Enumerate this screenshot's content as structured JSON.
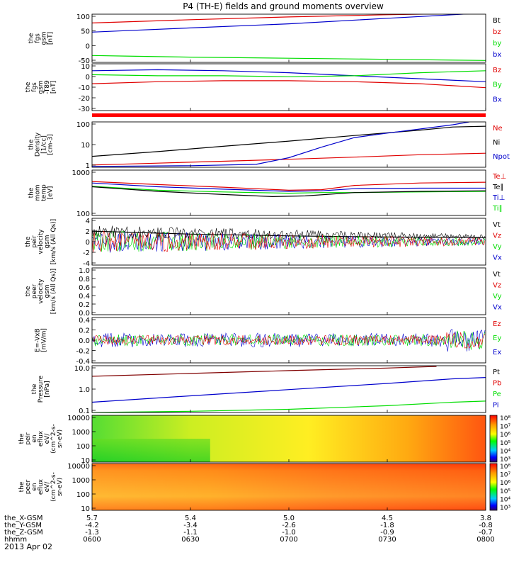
{
  "title": "P4 (TH-E) fields and ground moments overview",
  "colors": {
    "black": "#000000",
    "red": "#e00000",
    "green": "#00dd00",
    "blue": "#0000cc",
    "darkred": "#800000",
    "band": "#ff0000"
  },
  "chart_data": {
    "type": "line",
    "x_time_labels": [
      "0600",
      "0630",
      "0700",
      "0730",
      "0800"
    ],
    "x_range_hhmm": [
      "0600",
      "0800"
    ],
    "panels": [
      {
        "id": "fgs_gsm",
        "type": "line",
        "ylabel": [
          "the",
          "fgs",
          "gsm",
          "[nT]"
        ],
        "yticks": [
          "100",
          "50",
          "0",
          "-50"
        ],
        "ylim": [
          -65,
          110
        ],
        "scale": "linear",
        "legend": [
          {
            "text": "Bt",
            "color": "#000000"
          },
          {
            "text": "bz",
            "color": "#e00000"
          },
          {
            "text": "by",
            "color": "#00dd00"
          },
          {
            "text": "bx",
            "color": "#0000cc"
          }
        ],
        "series": [
          {
            "name": "bz",
            "color": "#e00000",
            "x": [
              0,
              10,
              30,
              60,
              90,
              110,
              120
            ],
            "y": [
              78,
              82,
              90,
              100,
              108,
              112,
              114
            ]
          },
          {
            "name": "bx",
            "color": "#0000cc",
            "x": [
              0,
              10,
              30,
              60,
              90,
              110,
              120
            ],
            "y": [
              45,
              50,
              60,
              75,
              95,
              108,
              115
            ]
          },
          {
            "name": "by",
            "color": "#00dd00",
            "x": [
              0,
              10,
              30,
              60,
              90,
              120
            ],
            "y": [
              -40,
              -42,
              -46,
              -50,
              -54,
              -58
            ]
          }
        ]
      },
      {
        "id": "fgs_gsm_t89",
        "type": "line",
        "ylabel": [
          "the",
          "fgs",
          "gsm",
          "-T89",
          "[nT]"
        ],
        "yticks": [
          "10",
          "0",
          "-10",
          "-20",
          "-30"
        ],
        "ylim": [
          -35,
          12
        ],
        "scale": "linear",
        "legend": [
          {
            "text": "Bz",
            "color": "#e00000"
          },
          {
            "text": "By",
            "color": "#00dd00"
          },
          {
            "text": "Bx",
            "color": "#0000cc"
          }
        ],
        "series": [
          {
            "name": "Bx",
            "color": "#0000cc",
            "x": [
              0,
              20,
              40,
              60,
              80,
              100,
              120
            ],
            "y": [
              5,
              6,
              5,
              3,
              0,
              -3,
              -6
            ]
          },
          {
            "name": "By",
            "color": "#00dd00",
            "x": [
              0,
              20,
              40,
              60,
              80,
              100,
              120
            ],
            "y": [
              1,
              0,
              0,
              -1,
              0,
              3,
              5
            ]
          },
          {
            "name": "Bz",
            "color": "#e00000",
            "x": [
              0,
              20,
              40,
              60,
              80,
              100,
              120
            ],
            "y": [
              -8,
              -6,
              -5,
              -5,
              -6,
              -8,
              -12
            ]
          }
        ]
      },
      {
        "id": "density",
        "type": "line",
        "ylabel": [
          "the",
          "Density",
          "[1/cc]",
          "[cm-3]"
        ],
        "yticks": [
          "100",
          "10",
          "1"
        ],
        "ylim": [
          1,
          180
        ],
        "scale": "log",
        "legend": [
          {
            "text": "Ne",
            "color": "#e00000"
          },
          {
            "text": "Ni",
            "color": "#000000"
          },
          {
            "text": "Npot",
            "color": "#0000cc"
          }
        ],
        "series": [
          {
            "name": "Ni",
            "color": "#000000",
            "x": [
              0,
              20,
              40,
              60,
              80,
              100,
              110,
              120
            ],
            "y": [
              3.5,
              6,
              11,
              20,
              38,
              70,
              100,
              110
            ]
          },
          {
            "name": "Ne",
            "color": "#e00000",
            "x": [
              0,
              20,
              40,
              60,
              80,
              100,
              120
            ],
            "y": [
              1.3,
              1.6,
              2.0,
              2.5,
              3.2,
              4.2,
              5.0
            ]
          },
          {
            "name": "Npot",
            "color": "#0000cc",
            "x": [
              0,
              30,
              50,
              60,
              70,
              80,
              90,
              100,
              110,
              115
            ],
            "y": [
              1.1,
              1.2,
              1.4,
              3,
              10,
              30,
              50,
              80,
              130,
              180
            ]
          }
        ]
      },
      {
        "id": "temperature",
        "type": "line",
        "ylabel": [
          "the",
          "mom",
          "temp",
          "[eV]"
        ],
        "yticks": [
          "1000",
          "100"
        ],
        "ylim": [
          100,
          1000
        ],
        "scale": "log",
        "legend": [
          {
            "text": "Te⊥",
            "color": "#e00000"
          },
          {
            "text": "Te∥",
            "color": "#000000"
          },
          {
            "text": "Ti⊥",
            "color": "#0000cc"
          },
          {
            "text": "Ti∥",
            "color": "#00dd00"
          }
        ],
        "series": [
          {
            "name": "Te⊥",
            "color": "#e00000",
            "x": [
              0,
              20,
              40,
              60,
              70,
              80,
              100,
              120
            ],
            "y": [
              560,
              480,
              420,
              360,
              370,
              460,
              520,
              540
            ]
          },
          {
            "name": "Ti⊥",
            "color": "#0000cc",
            "x": [
              0,
              20,
              40,
              60,
              70,
              80,
              100,
              120
            ],
            "y": [
              520,
              430,
              380,
              340,
              350,
              390,
              400,
              400
            ]
          },
          {
            "name": "Ti∥",
            "color": "#00dd00",
            "x": [
              0,
              20,
              40,
              60,
              70,
              80,
              100,
              120
            ],
            "y": [
              440,
              360,
              330,
              310,
              320,
              320,
              330,
              340
            ]
          },
          {
            "name": "Te∥",
            "color": "#000000",
            "x": [
              0,
              20,
              40,
              55,
              65,
              80,
              100,
              120
            ],
            "y": [
              430,
              340,
              290,
              260,
              270,
              320,
              340,
              350
            ]
          }
        ]
      },
      {
        "id": "peir_velocity",
        "type": "line",
        "ylabel": [
          "the",
          "peir",
          "velocity",
          "gsm",
          "[km/s (All Qs)]"
        ],
        "yticks": [
          "4",
          "2",
          "0",
          "-2",
          "-4"
        ],
        "ylim": [
          -4,
          4
        ],
        "scale": "linear",
        "legend": [
          {
            "text": "Vt",
            "color": "#000000"
          },
          {
            "text": "Vz",
            "color": "#e00000"
          },
          {
            "text": "Vy",
            "color": "#00dd00"
          },
          {
            "text": "Vx",
            "color": "#0000cc"
          }
        ],
        "series": [
          {
            "name": "Vt",
            "color": "#000000",
            "x": [
              0,
              30,
              60,
              90,
              120
            ],
            "y": [
              1.8,
              1.3,
              1.0,
              0.8,
              0.7
            ]
          }
        ]
      },
      {
        "id": "peer_velocity",
        "type": "line",
        "ylabel": [
          "the",
          "peer",
          "velocity",
          "gsm",
          "[km/s (All Qs)]"
        ],
        "yticks": [
          "1.0",
          "0.8",
          "0.6",
          "0.4",
          "0.2",
          "0.0"
        ],
        "ylim": [
          0,
          1
        ],
        "scale": "linear",
        "legend": [
          {
            "text": "Vt",
            "color": "#000000"
          },
          {
            "text": "Vz",
            "color": "#e00000"
          },
          {
            "text": "Vy",
            "color": "#00dd00"
          },
          {
            "text": "Vx",
            "color": "#0000cc"
          }
        ],
        "series": []
      },
      {
        "id": "efield",
        "type": "line",
        "ylabel": [
          "E=-VxB",
          "[mV/m]"
        ],
        "yticks": [
          "0.4",
          "0.2",
          "0.0",
          "-0.2",
          "-0.4"
        ],
        "ylim": [
          -0.45,
          0.45
        ],
        "scale": "linear",
        "legend": [
          {
            "text": "Ez",
            "color": "#e00000"
          },
          {
            "text": "Ey",
            "color": "#00dd00"
          },
          {
            "text": "Ex",
            "color": "#0000cc"
          }
        ],
        "series": []
      },
      {
        "id": "pressure",
        "type": "line",
        "ylabel": [
          "the",
          "Pressure",
          "[nPa]"
        ],
        "yticks": [
          "10.0",
          "1.0",
          "0.1"
        ],
        "ylim": [
          0.07,
          13
        ],
        "scale": "log",
        "legend": [
          {
            "text": "Pt",
            "color": "#000000"
          },
          {
            "text": "Pb",
            "color": "#e00000"
          },
          {
            "text": "Pe",
            "color": "#00dd00"
          },
          {
            "text": "Pi",
            "color": "#0000cc"
          }
        ],
        "series": [
          {
            "name": "Pb",
            "color": "#800000",
            "x": [
              0,
              30,
              60,
              90,
              105
            ],
            "y": [
              4,
              5.5,
              7.5,
              10,
              12
            ]
          },
          {
            "name": "Pi",
            "color": "#0000cc",
            "x": [
              0,
              30,
              60,
              90,
              110,
              120
            ],
            "y": [
              0.22,
              0.45,
              0.9,
              1.8,
              3.0,
              3.5
            ]
          },
          {
            "name": "Pe",
            "color": "#00dd00",
            "x": [
              0,
              30,
              60,
              90,
              110,
              120
            ],
            "y": [
              0.07,
              0.08,
              0.1,
              0.15,
              0.22,
              0.25
            ]
          }
        ]
      },
      {
        "id": "peir_en_eflux",
        "type": "heatmap",
        "ylabel": [
          "the",
          "peir",
          "en",
          "eflux",
          "eV/",
          "(cm^2-s-",
          "sr-eV)"
        ],
        "yticks": [
          "10000",
          "1000",
          "100",
          "10"
        ],
        "ylim": [
          10,
          25000
        ],
        "scale": "log",
        "colorbar": [
          "10⁸",
          "10⁷",
          "10⁶",
          "10⁵",
          "10⁴",
          "10³"
        ]
      },
      {
        "id": "peer_en_eflux",
        "type": "heatmap",
        "ylabel": [
          "the",
          "peer",
          "en",
          "eflux",
          "eV/",
          "(cm^2-s-",
          "sr-eV)"
        ],
        "yticks": [
          "10000",
          "1000",
          "100",
          "10"
        ],
        "ylim": [
          10,
          25000
        ],
        "scale": "log",
        "colorbar": [
          "10⁸",
          "10⁷",
          "10⁶",
          "10⁵",
          "10⁴",
          "10³"
        ]
      }
    ],
    "x_axis_rows": [
      {
        "label": "the_X-GSM",
        "values": [
          "5.7",
          "5.4",
          "5.0",
          "4.5",
          "3.8"
        ]
      },
      {
        "label": "the_Y-GSM",
        "values": [
          "-4.2",
          "-3.4",
          "-2.6",
          "-1.8",
          "-0.8"
        ]
      },
      {
        "label": "the_Z-GSM",
        "values": [
          "-1.3",
          "-1.1",
          "-1.0",
          "-0.9",
          "-0.7"
        ]
      },
      {
        "label": "hhmm",
        "values": [
          "0600",
          "0630",
          "0700",
          "0730",
          "0800"
        ]
      }
    ],
    "date": "2013 Apr 02"
  }
}
